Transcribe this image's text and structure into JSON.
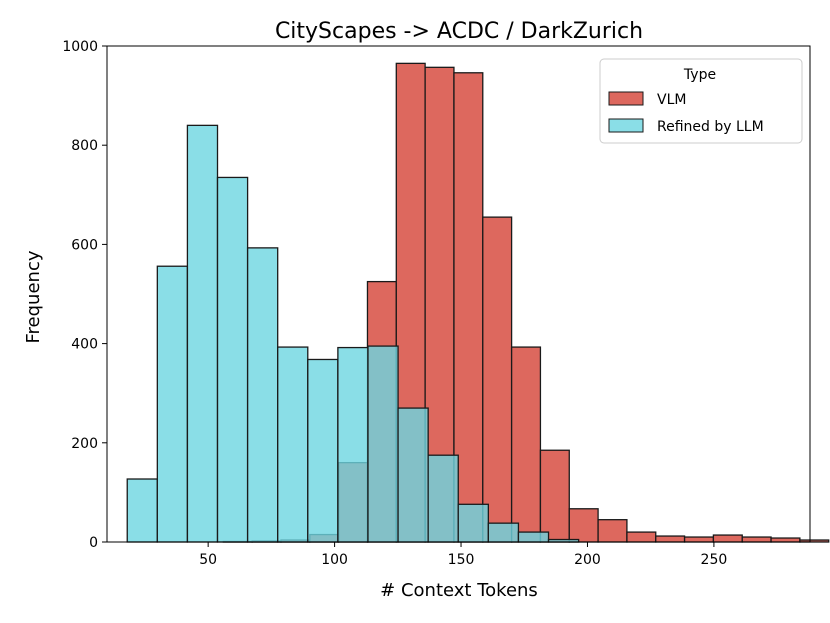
{
  "chart_data": {
    "type": "bar",
    "title": "CityScapes -> ACDC / DarkZurich",
    "xlabel": "# Context Tokens",
    "ylabel": "Frequency",
    "xlim": [
      10,
      288
    ],
    "ylim": [
      0,
      1000
    ],
    "xticks": [
      50,
      100,
      150,
      200,
      250
    ],
    "yticks": [
      0,
      200,
      400,
      600,
      800,
      1000
    ],
    "grid": false,
    "legend": {
      "title": "Type",
      "position": "top-right"
    },
    "series": [
      {
        "name": "VLM",
        "color": "#d9584c",
        "bin_width": 11.4,
        "bins": [
          {
            "x": 56,
            "value": 1
          },
          {
            "x": 67.4,
            "value": 2
          },
          {
            "x": 78.8,
            "value": 4
          },
          {
            "x": 90.2,
            "value": 15
          },
          {
            "x": 101.6,
            "value": 160
          },
          {
            "x": 113,
            "value": 525
          },
          {
            "x": 124.4,
            "value": 965
          },
          {
            "x": 135.8,
            "value": 957
          },
          {
            "x": 147.2,
            "value": 946
          },
          {
            "x": 158.6,
            "value": 655
          },
          {
            "x": 170,
            "value": 393
          },
          {
            "x": 181.4,
            "value": 185
          },
          {
            "x": 192.8,
            "value": 67
          },
          {
            "x": 204.2,
            "value": 45
          },
          {
            "x": 215.6,
            "value": 20
          },
          {
            "x": 227,
            "value": 12
          },
          {
            "x": 238.4,
            "value": 10
          },
          {
            "x": 249.8,
            "value": 14
          },
          {
            "x": 261.2,
            "value": 10
          },
          {
            "x": 272.6,
            "value": 8
          },
          {
            "x": 284,
            "value": 4
          }
        ]
      },
      {
        "name": "Refined by LLM",
        "color": "#6dd6e1",
        "bin_width": 11.9,
        "bins": [
          {
            "x": 18,
            "value": 127
          },
          {
            "x": 29.9,
            "value": 556
          },
          {
            "x": 41.8,
            "value": 840
          },
          {
            "x": 53.7,
            "value": 735
          },
          {
            "x": 65.6,
            "value": 593
          },
          {
            "x": 77.5,
            "value": 393
          },
          {
            "x": 89.4,
            "value": 368
          },
          {
            "x": 101.3,
            "value": 392
          },
          {
            "x": 113.2,
            "value": 395
          },
          {
            "x": 125.1,
            "value": 270
          },
          {
            "x": 137,
            "value": 175
          },
          {
            "x": 148.9,
            "value": 76
          },
          {
            "x": 160.8,
            "value": 38
          },
          {
            "x": 172.7,
            "value": 20
          },
          {
            "x": 184.6,
            "value": 5
          }
        ]
      }
    ]
  }
}
